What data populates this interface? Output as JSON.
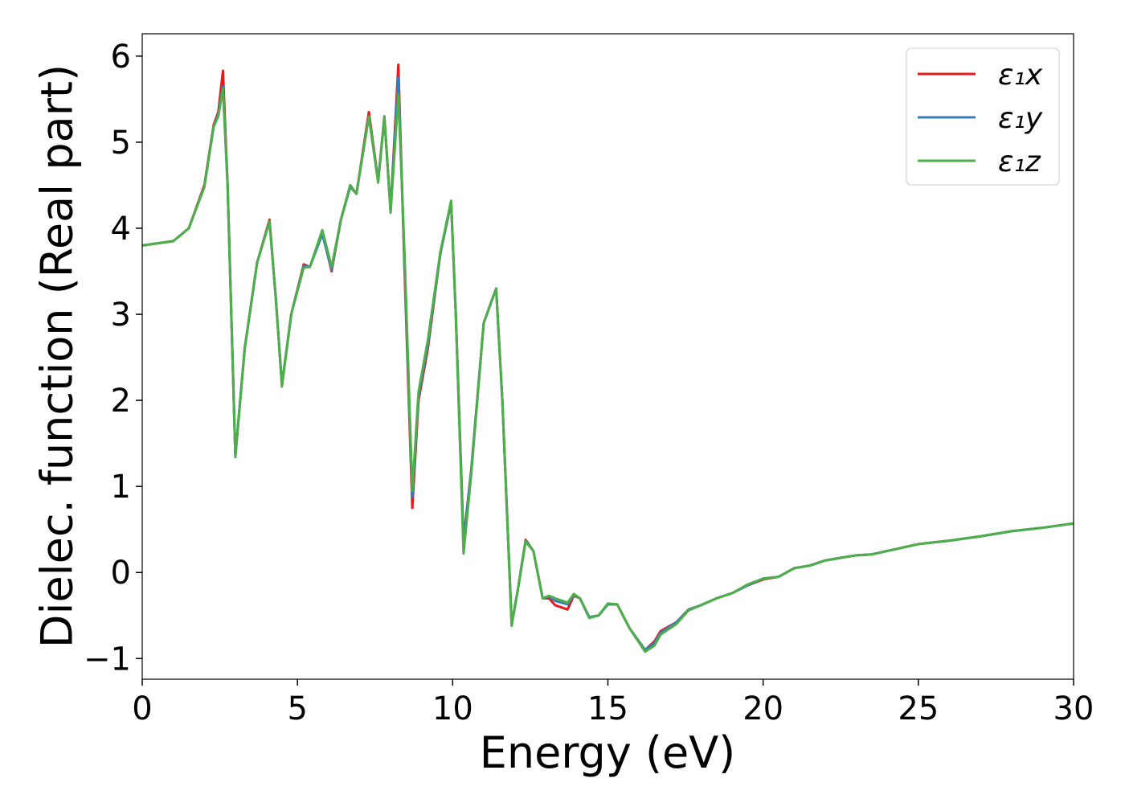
{
  "chart_data": {
    "type": "line",
    "xlabel": "Energy (eV)",
    "ylabel": "Dielec. function (Real part)",
    "x": [
      0,
      1,
      1.5,
      2,
      2.3,
      2.45,
      2.6,
      2.75,
      3,
      3.3,
      3.7,
      4.1,
      4.3,
      4.5,
      4.8,
      5.2,
      5.4,
      5.8,
      6.1,
      6.4,
      6.7,
      6.9,
      7.3,
      7.6,
      7.8,
      8,
      8.25,
      8.45,
      8.7,
      8.9,
      9.2,
      9.6,
      9.95,
      10.1,
      10.35,
      10.6,
      11,
      11.4,
      11.6,
      11.9,
      12.1,
      12.35,
      12.6,
      12.9,
      13.1,
      13.3,
      13.7,
      13.9,
      14.1,
      14.4,
      14.7,
      15,
      15.3,
      15.7,
      16.2,
      16.5,
      16.7,
      17.2,
      17.6,
      18,
      18.5,
      19,
      19.5,
      20,
      20.5,
      21,
      21.5,
      22,
      22.5,
      23,
      23.5,
      24,
      24.5,
      25,
      26,
      27,
      28,
      29,
      30
    ],
    "series": [
      {
        "name": "ε₁x",
        "color": "#e41a1c",
        "values": [
          3.8,
          3.85,
          4,
          4.5,
          5.2,
          5.35,
          5.83,
          4.5,
          1.35,
          2.6,
          3.6,
          4.1,
          3.2,
          2.18,
          3,
          3.58,
          3.55,
          3.95,
          3.5,
          4.1,
          4.5,
          4.4,
          5.35,
          4.55,
          5.3,
          4.2,
          5.9,
          3.5,
          0.75,
          2,
          2.6,
          3.7,
          4.3,
          3,
          0.38,
          1.2,
          2.9,
          3.3,
          2,
          -0.6,
          -0.2,
          0.38,
          0.25,
          -0.3,
          -0.3,
          -0.38,
          -0.43,
          -0.27,
          -0.3,
          -0.52,
          -0.5,
          -0.37,
          -0.37,
          -0.65,
          -0.9,
          -0.8,
          -0.68,
          -0.58,
          -0.43,
          -0.38,
          -0.3,
          -0.24,
          -0.15,
          -0.08,
          -0.05,
          0.05,
          0.08,
          0.14,
          0.17,
          0.2,
          0.21,
          0.25,
          0.29,
          0.33,
          0.37,
          0.42,
          0.48,
          0.52,
          0.57
        ]
      },
      {
        "name": "ε₁y",
        "color": "#377eb8",
        "values": [
          3.8,
          3.85,
          4,
          4.48,
          5.18,
          5.32,
          5.65,
          4.5,
          1.36,
          2.6,
          3.6,
          4.08,
          3.2,
          2.18,
          3,
          3.56,
          3.55,
          3.93,
          3.52,
          4.1,
          4.48,
          4.4,
          5.3,
          4.55,
          5.28,
          4.2,
          5.75,
          3.6,
          0.88,
          2.05,
          2.65,
          3.7,
          4.3,
          3,
          0.35,
          1.2,
          2.9,
          3.3,
          2,
          -0.6,
          -0.2,
          0.37,
          0.25,
          -0.3,
          -0.28,
          -0.33,
          -0.37,
          -0.26,
          -0.3,
          -0.52,
          -0.5,
          -0.37,
          -0.37,
          -0.65,
          -0.9,
          -0.82,
          -0.7,
          -0.58,
          -0.43,
          -0.38,
          -0.3,
          -0.24,
          -0.15,
          -0.07,
          -0.05,
          0.05,
          0.08,
          0.14,
          0.17,
          0.2,
          0.21,
          0.25,
          0.29,
          0.33,
          0.37,
          0.42,
          0.48,
          0.52,
          0.57
        ]
      },
      {
        "name": "ε₁z",
        "color": "#4daf4a",
        "values": [
          3.8,
          3.85,
          4,
          4.48,
          5.18,
          5.3,
          5.62,
          4.5,
          1.34,
          2.6,
          3.6,
          4.08,
          3.2,
          2.16,
          3,
          3.54,
          3.55,
          3.98,
          3.55,
          4.1,
          4.5,
          4.4,
          5.3,
          4.53,
          5.3,
          4.18,
          5.55,
          3.7,
          0.95,
          2.1,
          2.7,
          3.72,
          4.32,
          3,
          0.22,
          1.15,
          2.9,
          3.3,
          2,
          -0.62,
          -0.2,
          0.36,
          0.25,
          -0.3,
          -0.27,
          -0.3,
          -0.35,
          -0.25,
          -0.3,
          -0.53,
          -0.5,
          -0.36,
          -0.37,
          -0.65,
          -0.92,
          -0.85,
          -0.72,
          -0.6,
          -0.44,
          -0.38,
          -0.3,
          -0.24,
          -0.14,
          -0.07,
          -0.05,
          0.05,
          0.08,
          0.14,
          0.17,
          0.2,
          0.21,
          0.25,
          0.29,
          0.33,
          0.37,
          0.42,
          0.48,
          0.52,
          0.57
        ]
      }
    ],
    "xlim": [
      0,
      30
    ],
    "ylim": [
      -1.24,
      6.26
    ],
    "xticks": [
      0,
      5,
      10,
      15,
      20,
      25,
      30
    ],
    "yticks": [
      {
        "value": -1,
        "label": "−1"
      },
      0,
      1,
      2,
      3,
      4,
      5,
      6
    ],
    "grid": false,
    "legend": "upper right"
  }
}
